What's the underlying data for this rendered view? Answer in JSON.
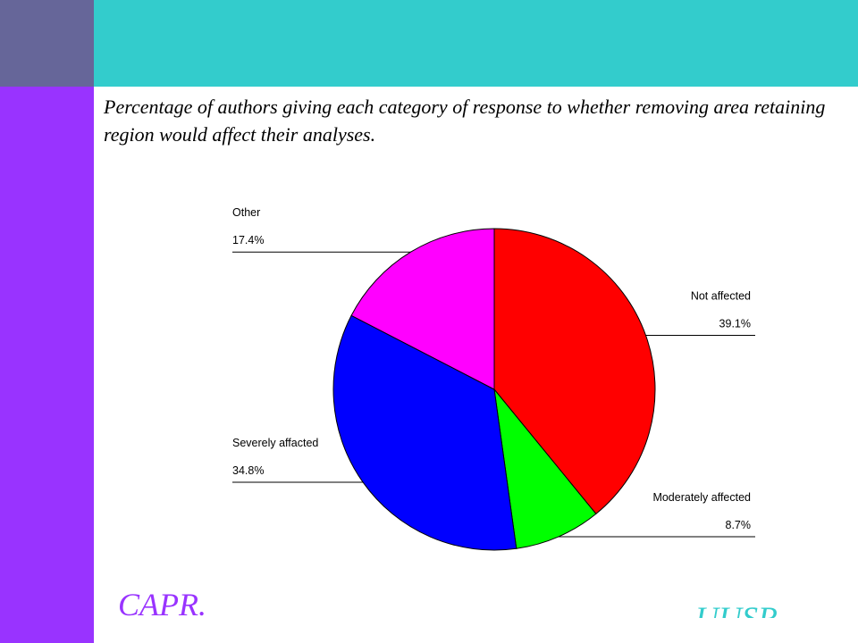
{
  "theme": {
    "left_bar_top_color": "#666699",
    "left_bar_color": "#9933ff",
    "top_bar_color": "#33cccc",
    "footer_left_color": "#9933ff",
    "footer_right_color": "#33cccc"
  },
  "caption": "Percentage of authors giving each category of response to whether removing area retaining region would affect their analyses.",
  "chart_data": {
    "type": "pie",
    "title": "",
    "start_angle_deg": 0,
    "direction": "clockwise",
    "slices": [
      {
        "label": "Not affected",
        "value_label": "39.1%",
        "value": 39.1,
        "color": "#ff0000",
        "label_side": "right"
      },
      {
        "label": "Moderately affected",
        "value_label": "8.7%",
        "value": 8.7,
        "color": "#00ff00",
        "label_side": "right"
      },
      {
        "label": "Severely affacted",
        "value_label": "34.8%",
        "value": 34.8,
        "color": "#0000ff",
        "label_side": "left"
      },
      {
        "label": "Other",
        "value_label": "17.4%",
        "value": 17.4,
        "color": "#ff00ff",
        "label_side": "left"
      }
    ]
  },
  "footer": {
    "left_text": "CAPR.",
    "right_text": "UUSR"
  }
}
